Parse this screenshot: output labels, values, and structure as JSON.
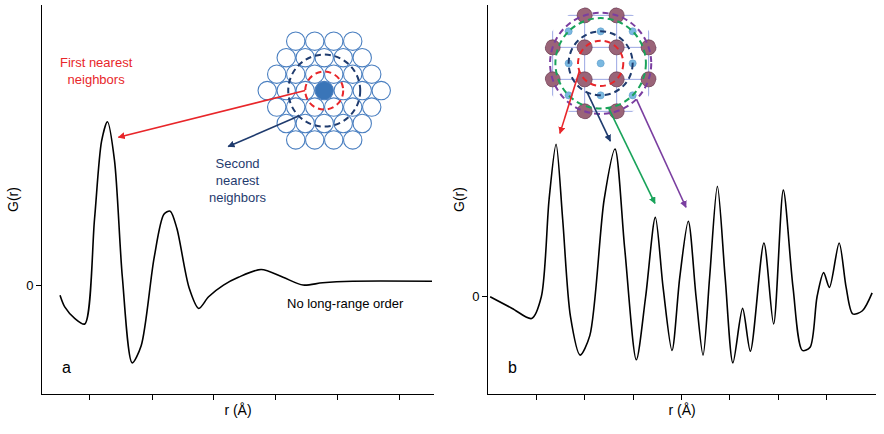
{
  "chart_data": [
    {
      "type": "line",
      "panel_label": "a",
      "x_label": "r (Å)",
      "y_label": "G(r)",
      "color": "#000000",
      "line_style": "solid",
      "grid": false,
      "tick_labels": "y",
      "xlim": [
        0,
        10
      ],
      "ylim": [
        -1.4,
        3.6
      ],
      "xticks": [
        1.22,
        2.81,
        4.38,
        5.95,
        7.54,
        9.11
      ],
      "yticks": [
        0
      ],
      "x": [
        0.46,
        0.58,
        0.84,
        1.09,
        1.34,
        1.52,
        1.67,
        1.85,
        2.05,
        2.3,
        2.53,
        2.86,
        3.11,
        3.27,
        3.44,
        3.75,
        4.0,
        4.25,
        4.63,
        5.01,
        5.59,
        6.15,
        6.66,
        7.16,
        7.92,
        9.95
      ],
      "values": [
        -0.13,
        -0.28,
        -0.43,
        -0.5,
        0.85,
        1.85,
        2.1,
        1.6,
        0.1,
        -1.0,
        -0.78,
        0.35,
        0.91,
        0.95,
        0.73,
        -0.03,
        -0.3,
        -0.15,
        0,
        0.1,
        0.2,
        0.1,
        0,
        0.03,
        0.05,
        0.05
      ],
      "annotations": [
        {
          "text": "First nearest neighbors",
          "color": "#e8262a"
        },
        {
          "text": "Second nearest neighbors",
          "color": "#1f3b6e"
        },
        {
          "text": "No long-range order",
          "color": "#000000"
        }
      ]
    },
    {
      "type": "line",
      "panel_label": "b",
      "x_label": "r (Å)",
      "y_label": "G(r)",
      "color": "#000000",
      "line_style": "solid",
      "grid": false,
      "tick_labels": "y",
      "xlim": [
        0,
        10
      ],
      "ylim": [
        -1.25,
        3.75
      ],
      "xticks": [
        1.25,
        2.49,
        3.74,
        4.99,
        6.23,
        7.48,
        8.73
      ],
      "yticks": [
        0
      ],
      "x": [
        0.05,
        0.62,
        1.12,
        1.37,
        1.57,
        1.75,
        1.92,
        2.12,
        2.37,
        2.62,
        2.99,
        3.27,
        3.52,
        3.82,
        4.06,
        4.31,
        4.51,
        4.74,
        4.94,
        5.16,
        5.36,
        5.54,
        5.71,
        5.91,
        6.11,
        6.31,
        6.56,
        6.76,
        7.11,
        7.36,
        7.61,
        7.86,
        8.1,
        8.3,
        8.48,
        8.65,
        8.8,
        9.05,
        9.23,
        9.4,
        9.65,
        9.9
      ],
      "values": [
        0,
        -0.15,
        -0.28,
        0,
        1.25,
        1.96,
        1.0,
        -0.25,
        -0.75,
        -0.5,
        1.25,
        1.9,
        0.62,
        -0.81,
        0,
        1.02,
        0.12,
        -0.69,
        0.25,
        0.97,
        0,
        -0.75,
        0.25,
        1.42,
        0.25,
        -0.85,
        -0.15,
        -0.7,
        0.69,
        -0.35,
        1.37,
        0.12,
        -0.69,
        -0.65,
        0,
        0.31,
        0.12,
        0.69,
        0.12,
        -0.22,
        -0.18,
        0.05
      ],
      "annotations": []
    }
  ]
}
